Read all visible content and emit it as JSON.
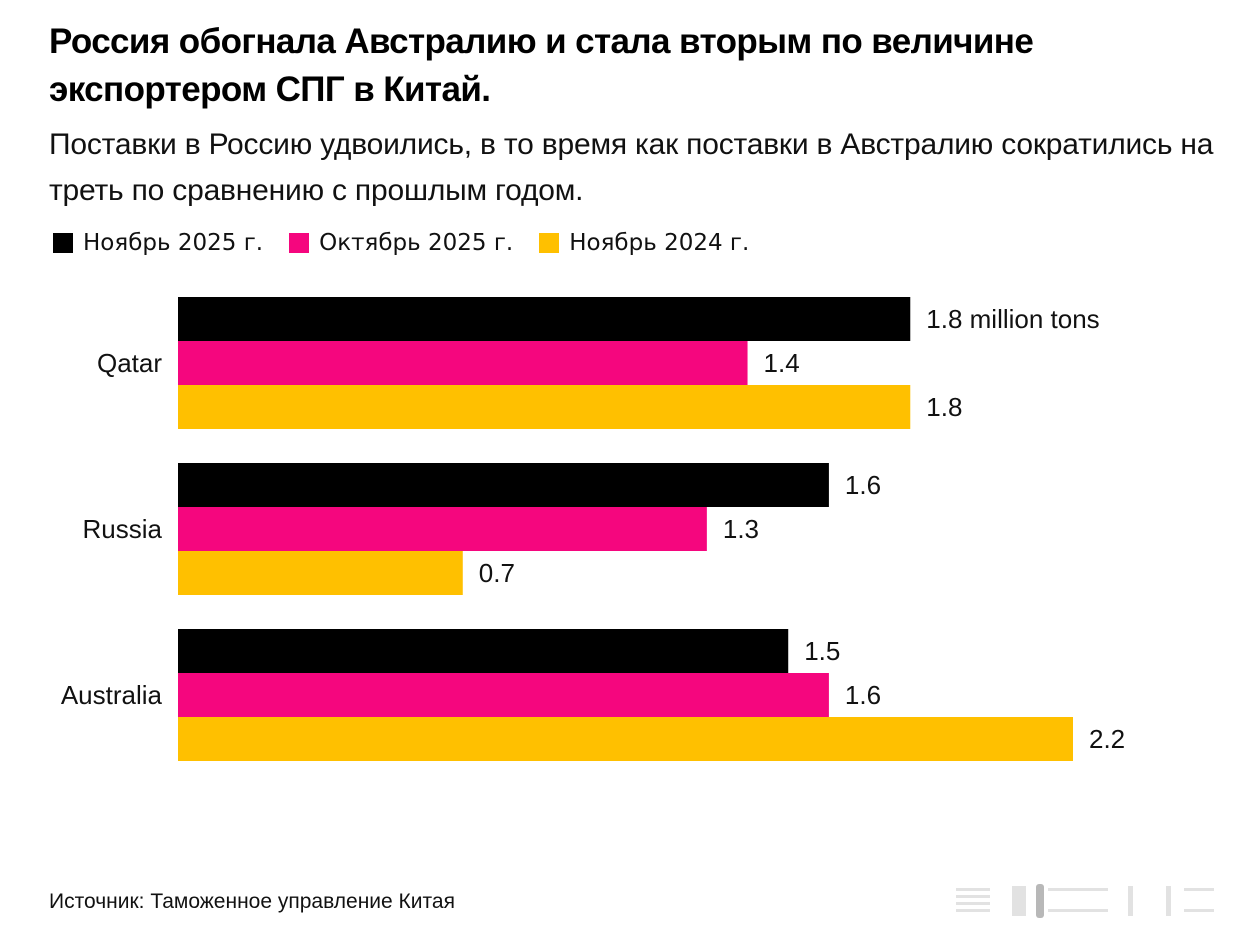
{
  "chart_data": {
    "type": "bar",
    "orientation": "horizontal",
    "title": "Россия обогнала Австралию и стала вторым по величине экспортером СПГ в Китай.",
    "subtitle": "Поставки в Россию удвоились, в то время как поставки в Австралию сократились на треть по сравнению с прошлым годом.",
    "categories": [
      "Qatar",
      "Russia",
      "Australia"
    ],
    "series": [
      {
        "name": "Ноябрь 2025 г.",
        "color": "#000000",
        "values": [
          1.8,
          1.6,
          1.5
        ],
        "labels": [
          "1.8 million tons",
          "1.6",
          "1.5"
        ]
      },
      {
        "name": "Октябрь 2025 г.",
        "color": "#f5067e",
        "values": [
          1.4,
          1.3,
          1.6
        ],
        "labels": [
          "1.4",
          "1.3",
          "1.6"
        ]
      },
      {
        "name": "Ноябрь 2024 г.",
        "color": "#ffc000",
        "values": [
          1.8,
          0.7,
          2.2
        ],
        "labels": [
          "1.8",
          "0.7",
          "2.2"
        ]
      }
    ],
    "xlim": [
      0,
      2.2
    ],
    "grid": false,
    "legend_position": "top-left"
  },
  "source": "Источник: Таможенное управление Китая"
}
